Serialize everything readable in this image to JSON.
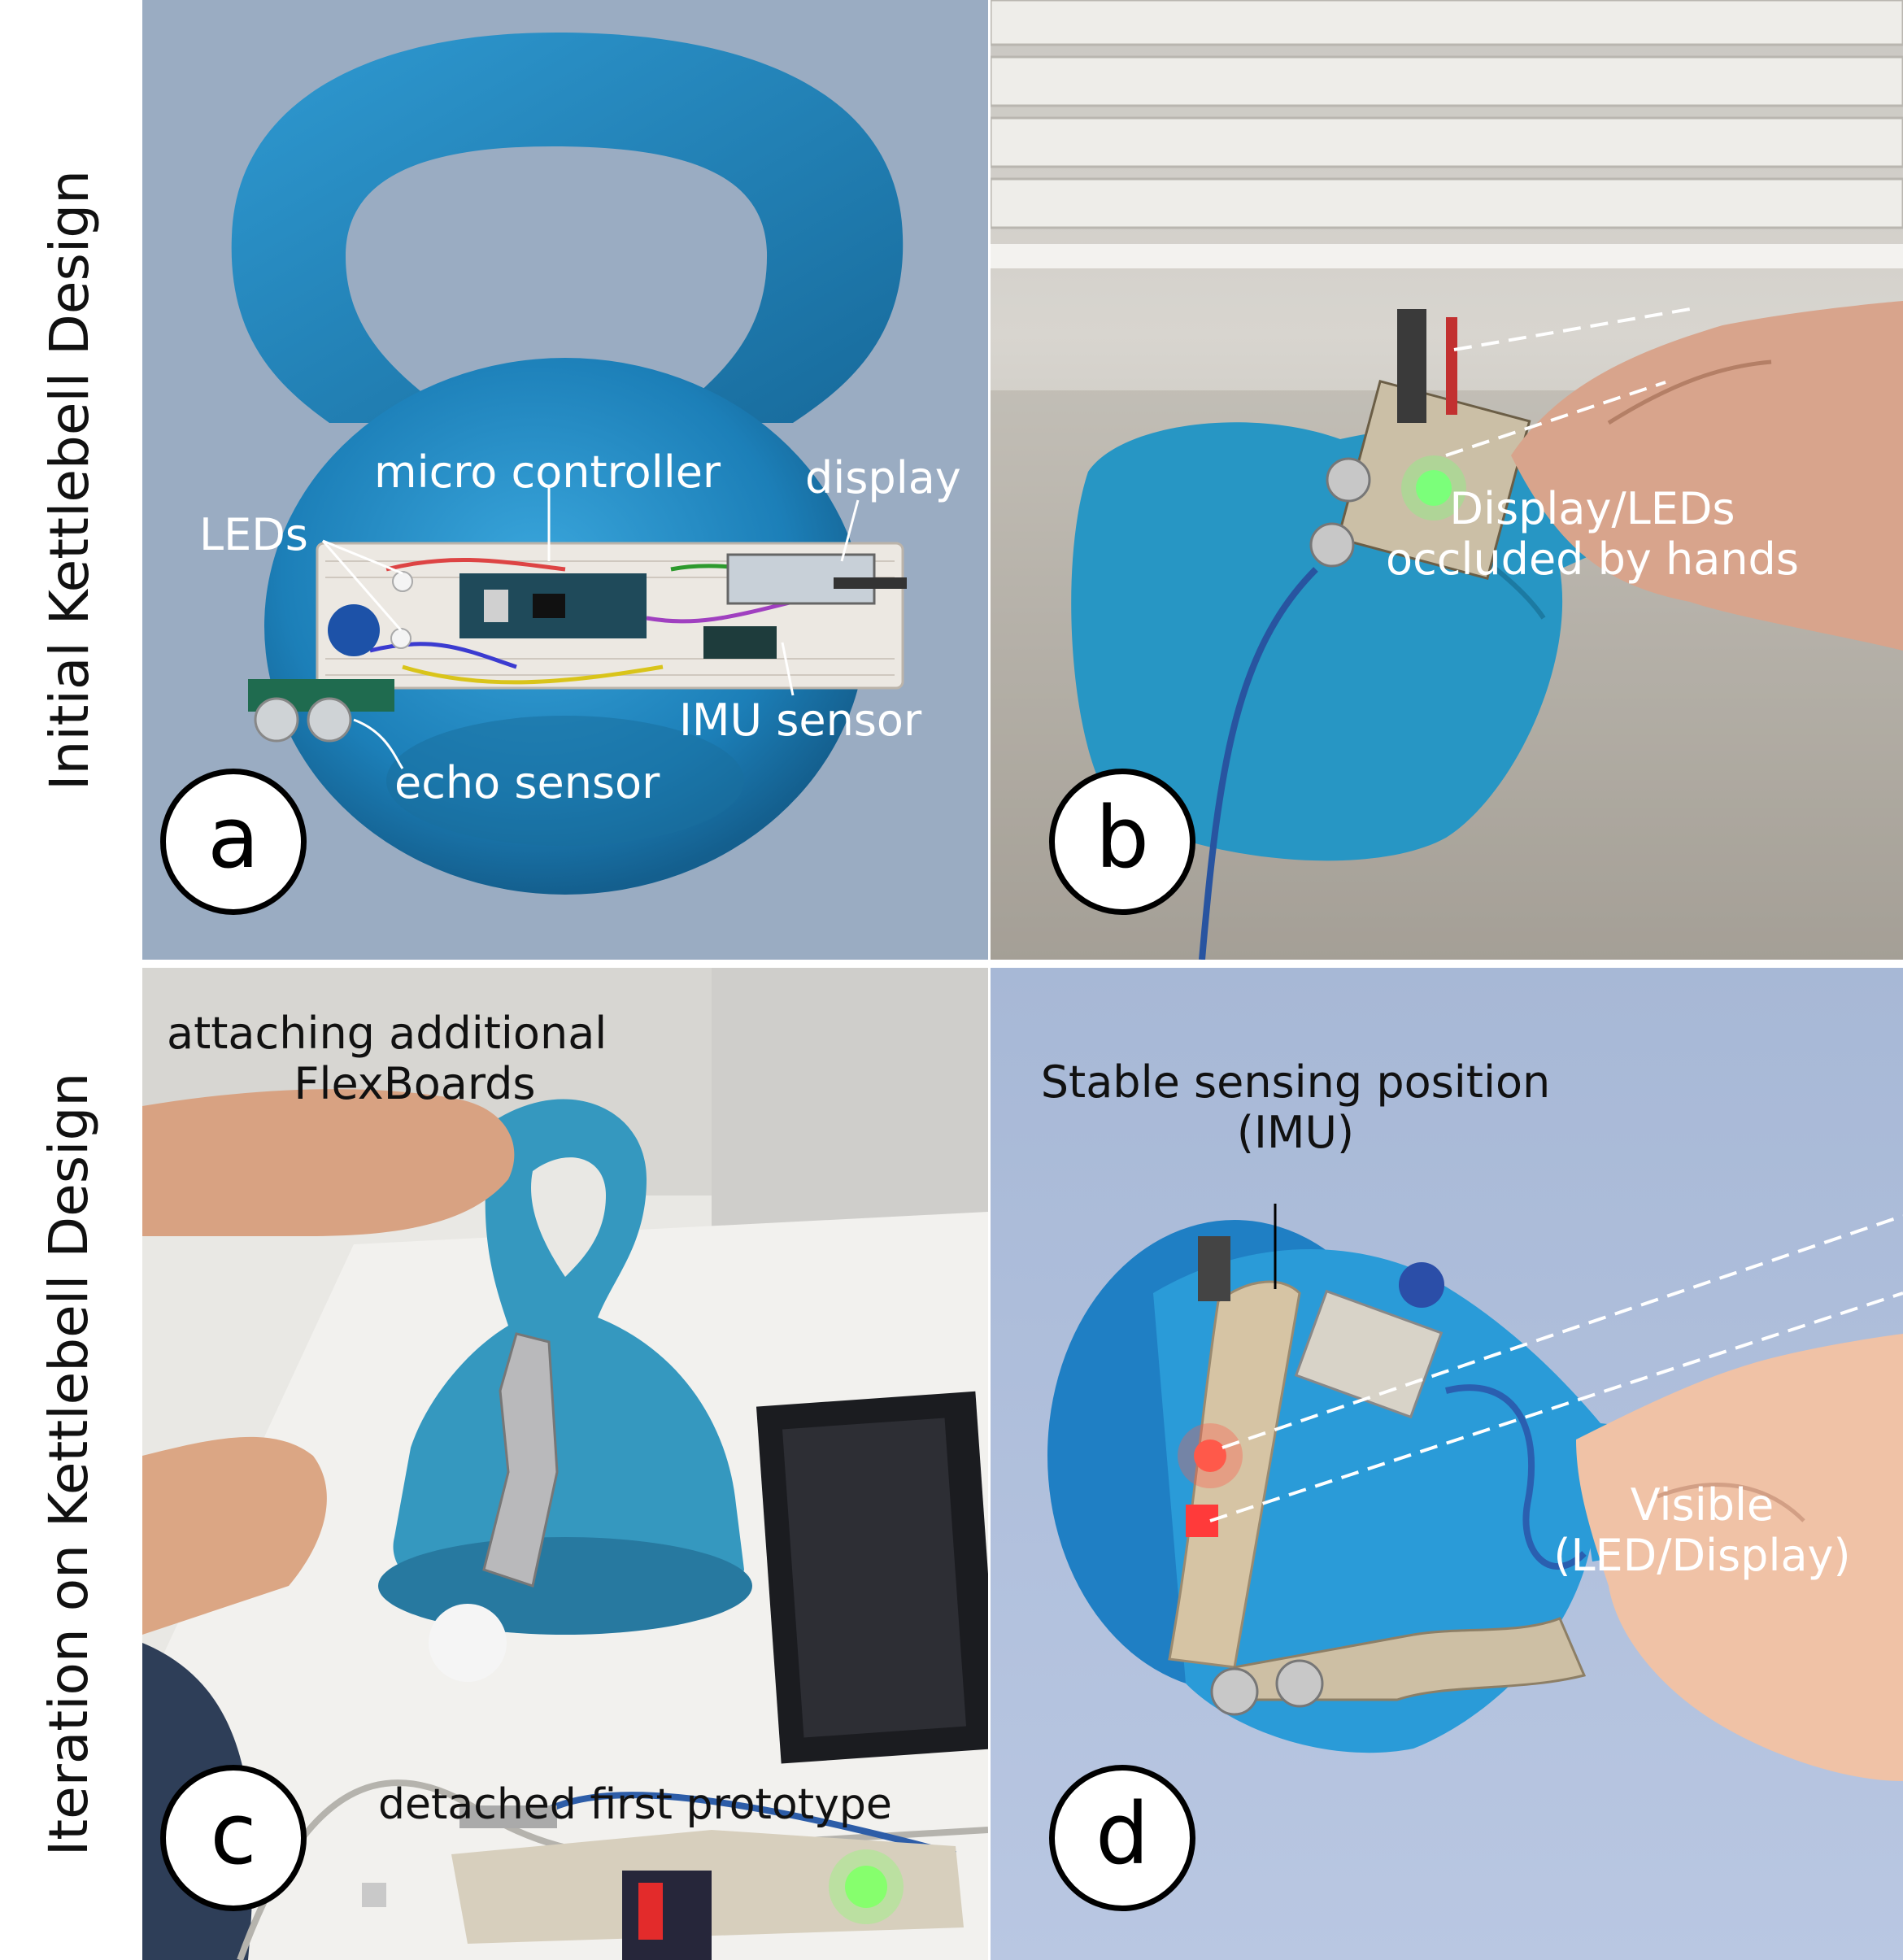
{
  "row_labels": {
    "top": "Initial Kettlebell Design",
    "bottom": "Iteration on Kettlebell Design"
  },
  "panels": {
    "a": {
      "badge": "a",
      "labels": {
        "micro_controller": "micro controller",
        "display": "display",
        "leds": "LEDs",
        "imu_sensor": "IMU sensor",
        "echo_sensor": "echo sensor"
      }
    },
    "b": {
      "badge": "b",
      "caption_line1": "Display/LEDs",
      "caption_line2": "occluded by hands"
    },
    "c": {
      "badge": "c",
      "caption_line1": "attaching additional",
      "caption_line2": "FlexBoards",
      "detached": "detached first prototype"
    },
    "d": {
      "badge": "d",
      "stable_line1": "Stable sensing position",
      "stable_line2": "(IMU)",
      "visible_line1": "Visible",
      "visible_line2": "(LED/Display)"
    }
  },
  "colors": {
    "panel_a_bg": "#9aacc2",
    "kettlebell_blue": "#1e86bd",
    "panel_d_bg": "#aebfdc",
    "wall": "#e8e6e0"
  }
}
